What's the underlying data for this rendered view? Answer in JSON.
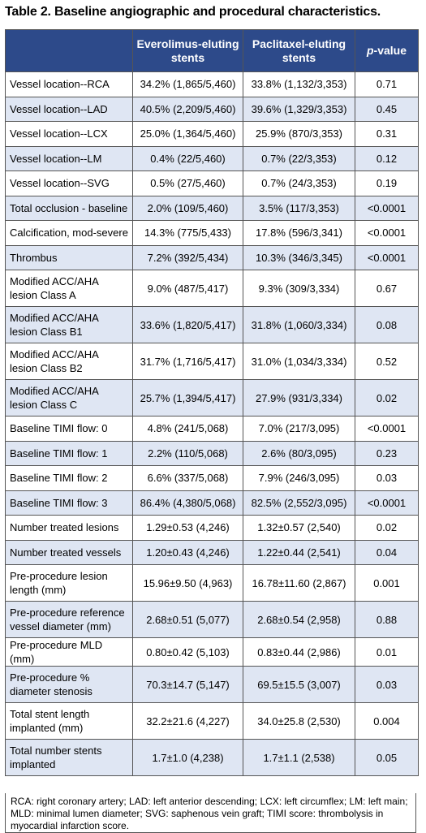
{
  "title": "Table 2. Baseline angiographic and procedural characteristics.",
  "headers": {
    "col1": "",
    "col2": "Everolimus-eluting stents",
    "col3": "Paclitaxel-eluting stents",
    "col4_italic": "p",
    "col4_rest": "-value"
  },
  "rows": [
    {
      "label": "Vessel location--RCA",
      "ees": "34.2% (1,865/5,460)",
      "pes": "33.8% (1,132/3,353)",
      "p": "0.71"
    },
    {
      "label": "Vessel location--LAD",
      "ees": "40.5% (2,209/5,460)",
      "pes": "39.6% (1,329/3,353)",
      "p": "0.45"
    },
    {
      "label": "Vessel location--LCX",
      "ees": "25.0% (1,364/5,460)",
      "pes": "25.9% (870/3,353)",
      "p": "0.31"
    },
    {
      "label": "Vessel location--LM",
      "ees": "0.4% (22/5,460)",
      "pes": "0.7% (22/3,353)",
      "p": "0.12"
    },
    {
      "label": "Vessel location--SVG",
      "ees": "0.5% (27/5,460)",
      "pes": "0.7% (24/3,353)",
      "p": "0.19"
    },
    {
      "label": "Total occlusion - baseline",
      "ees": "2.0% (109/5,460)",
      "pes": "3.5% (117/3,353)",
      "p": "<0.0001"
    },
    {
      "label": "Calcification, mod-severe",
      "ees": "14.3% (775/5,433)",
      "pes": "17.8% (596/3,341)",
      "p": "<0.0001"
    },
    {
      "label": "Thrombus",
      "ees": "7.2% (392/5,434)",
      "pes": "10.3% (346/3,345)",
      "p": "<0.0001"
    },
    {
      "label": "Modified ACC/AHA lesion Class A",
      "ees": "9.0% (487/5,417)",
      "pes": "9.3% (309/3,334)",
      "p": "0.67"
    },
    {
      "label": "Modified ACC/AHA lesion Class B1",
      "ees": "33.6% (1,820/5,417)",
      "pes": "31.8% (1,060/3,334)",
      "p": "0.08"
    },
    {
      "label": "Modified ACC/AHA lesion Class B2",
      "ees": "31.7% (1,716/5,417)",
      "pes": "31.0% (1,034/3,334)",
      "p": "0.52"
    },
    {
      "label": "Modified ACC/AHA lesion Class C",
      "ees": "25.7% (1,394/5,417)",
      "pes": "27.9% (931/3,334)",
      "p": "0.02"
    },
    {
      "label": "Baseline TIMI flow: 0",
      "ees": "4.8% (241/5,068)",
      "pes": "7.0% (217/3,095)",
      "p": "<0.0001"
    },
    {
      "label": "Baseline TIMI flow: 1",
      "ees": "2.2% (110/5,068)",
      "pes": "2.6% (80/3,095)",
      "p": "0.23"
    },
    {
      "label": "Baseline TIMI flow: 2",
      "ees": "6.6% (337/5,068)",
      "pes": "7.9% (246/3,095)",
      "p": "0.03"
    },
    {
      "label": "Baseline TIMI flow: 3",
      "ees": "86.4% (4,380/5,068)",
      "pes": "82.5% (2,552/3,095)",
      "p": "<0.0001"
    },
    {
      "label": "Number treated lesions",
      "ees": "1.29±0.53 (4,246)",
      "pes": "1.32±0.57 (2,540)",
      "p": "0.02"
    },
    {
      "label": "Number treated vessels",
      "ees": "1.20±0.43 (4,246)",
      "pes": "1.22±0.44 (2,541)",
      "p": "0.04"
    },
    {
      "label": "Pre-procedure lesion length (mm)",
      "ees": "15.96±9.50 (4,963)",
      "pes": "16.78±11.60 (2,867)",
      "p": "0.001"
    },
    {
      "label": "Pre-procedure reference vessel diameter (mm)",
      "ees": "2.68±0.51 (5,077)",
      "pes": "2.68±0.54 (2,958)",
      "p": "0.88"
    },
    {
      "label": "Pre-procedure MLD (mm)",
      "ees": "0.80±0.42 (5,103)",
      "pes": "0.83±0.44 (2,986)",
      "p": "0.01"
    },
    {
      "label": "Pre-procedure % diameter stenosis",
      "ees": "70.3±14.7 (5,147)",
      "pes": "69.5±15.5 (3,007)",
      "p": "0.03"
    },
    {
      "label": "Total stent length implanted (mm)",
      "ees": "32.2±21.6 (4,227)",
      "pes": "34.0±25.8 (2,530)",
      "p": "0.004"
    },
    {
      "label": "Total number stents implanted",
      "ees": "1.7±1.0 (4,238)",
      "pes": "1.7±1.1 (2,538)",
      "p": "0.05"
    }
  ],
  "footnote": "RCA: right coronary artery; LAD: left anterior descending; LCX: left circumflex; LM: left main; MLD: minimal lumen diameter; SVG: saphenous vein graft; TIMI score: thrombolysis in myocardial infarction score."
}
